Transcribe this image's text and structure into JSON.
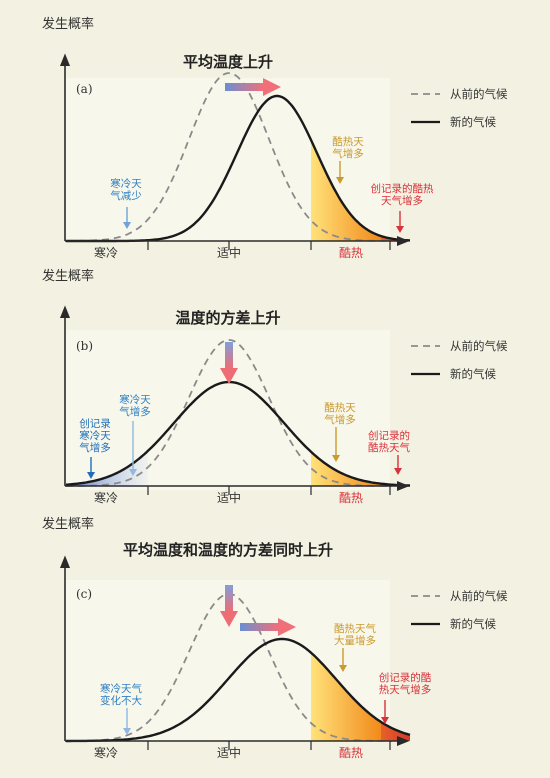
{
  "colors": {
    "page_bg": "#f3f1e1",
    "panel_bg": "#f8f7ec",
    "axis": "#2a2a2a",
    "prev_curve": "#8a8a8a",
    "new_curve": "#1a1a1a",
    "cold_blue": "#2f7fc1",
    "hot_orange": "#c99a2e",
    "record_red": "#d8323a",
    "hot_fill_light": "#ffe27a",
    "hot_fill_dark": "#f28a1a",
    "record_fill": "#d43a2a"
  },
  "legend": {
    "prev_label": "从前的气候",
    "new_label": "新的气候"
  },
  "panels": [
    {
      "y_label": "发生概率",
      "title": "平均温度上升",
      "tag": "(a)",
      "x_labels": {
        "cold": "寒冷",
        "mid": "适中",
        "hot": "酷热"
      },
      "annotations": {
        "cold": [
          "寒冷天",
          "气减少"
        ],
        "hot": [
          "酷热天",
          "气增多"
        ],
        "record_hot": [
          "创记录的酷热",
          "天气增多"
        ]
      },
      "arrows": [
        "right"
      ]
    },
    {
      "y_label": "发生概率",
      "title": "温度的方差上升",
      "tag": "(b)",
      "x_labels": {
        "cold": "寒冷",
        "mid": "适中",
        "hot": "酷热"
      },
      "annotations": {
        "record_cold": [
          "创记录",
          "寒冷天",
          "气增多"
        ],
        "cold": [
          "寒冷天",
          "气增多"
        ],
        "hot": [
          "酷热天",
          "气增多"
        ],
        "record_hot": [
          "创记录的",
          "酷热天气"
        ]
      },
      "arrows": [
        "down"
      ]
    },
    {
      "y_label": "发生概率",
      "title": "平均温度和温度的方差同时上升",
      "tag": "(c)",
      "x_labels": {
        "cold": "寒冷",
        "mid": "适中",
        "hot": "酷热"
      },
      "annotations": {
        "cold": [
          "寒冷天气",
          "变化不大"
        ],
        "hot": [
          "酷热天气",
          "大量增多"
        ],
        "record_hot": [
          "创记录的酷",
          "热天气增多"
        ]
      },
      "arrows": [
        "down",
        "right"
      ]
    }
  ]
}
